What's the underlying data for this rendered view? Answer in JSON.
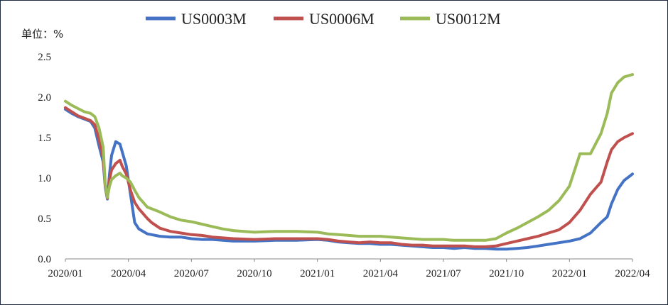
{
  "chart_data": {
    "type": "line",
    "unit_label": "单位：%",
    "x_tick_labels": [
      "2020/01",
      "2020/04",
      "2020/07",
      "2020/10",
      "2021/01",
      "2021/04",
      "2021/07",
      "2021/10",
      "2022/01",
      "2022/04"
    ],
    "y_tick_labels": [
      "0.0",
      "0.5",
      "1.0",
      "1.5",
      "2.0",
      "2.5"
    ],
    "ylim": [
      0,
      2.5
    ],
    "grid": false,
    "legend_position": "top",
    "x_unit": "months since 2020/01",
    "series": [
      {
        "name": "US0003M",
        "color": "#4472C4",
        "x": [
          0,
          0.3,
          0.6,
          0.9,
          1.2,
          1.4,
          1.6,
          1.8,
          1.9,
          2.0,
          2.1,
          2.2,
          2.4,
          2.6,
          2.7,
          2.9,
          3.1,
          3.3,
          3.5,
          3.7,
          3.9,
          4.1,
          4.5,
          5,
          5.5,
          6,
          6.5,
          7,
          7.5,
          8,
          9,
          10,
          11,
          12,
          12.5,
          13,
          13.5,
          14,
          14.5,
          15,
          15.5,
          16,
          16.5,
          17,
          17.5,
          18,
          18.5,
          19,
          19.5,
          20,
          20.5,
          21,
          21.5,
          22,
          22.5,
          23,
          23.5,
          24,
          24.5,
          25,
          25.5,
          25.8,
          26,
          26.3,
          26.6,
          27
        ],
        "y": [
          1.85,
          1.8,
          1.76,
          1.73,
          1.7,
          1.62,
          1.4,
          1.2,
          0.88,
          0.74,
          1.05,
          1.28,
          1.45,
          1.42,
          1.33,
          1.15,
          0.8,
          0.45,
          0.37,
          0.34,
          0.31,
          0.3,
          0.28,
          0.27,
          0.27,
          0.25,
          0.24,
          0.24,
          0.23,
          0.22,
          0.22,
          0.23,
          0.23,
          0.24,
          0.23,
          0.21,
          0.2,
          0.19,
          0.19,
          0.18,
          0.18,
          0.17,
          0.16,
          0.15,
          0.14,
          0.14,
          0.13,
          0.14,
          0.13,
          0.13,
          0.12,
          0.12,
          0.13,
          0.14,
          0.16,
          0.18,
          0.2,
          0.22,
          0.25,
          0.32,
          0.45,
          0.52,
          0.68,
          0.86,
          0.97,
          1.05
        ]
      },
      {
        "name": "US0006M",
        "color": "#C0504D",
        "x": [
          0,
          0.3,
          0.6,
          0.9,
          1.2,
          1.4,
          1.6,
          1.8,
          1.9,
          2.0,
          2.1,
          2.2,
          2.4,
          2.6,
          2.7,
          2.9,
          3.1,
          3.3,
          3.5,
          3.7,
          3.9,
          4.1,
          4.5,
          5,
          5.5,
          6,
          6.5,
          7,
          7.5,
          8,
          9,
          10,
          11,
          12,
          12.5,
          13,
          13.5,
          14,
          14.5,
          15,
          15.5,
          16,
          16.5,
          17,
          17.5,
          18,
          18.5,
          19,
          19.5,
          20,
          20.5,
          21,
          21.5,
          22,
          22.5,
          23,
          23.5,
          24,
          24.5,
          25,
          25.5,
          25.8,
          26,
          26.3,
          26.6,
          27
        ],
        "y": [
          1.87,
          1.82,
          1.77,
          1.74,
          1.71,
          1.66,
          1.48,
          1.25,
          0.9,
          0.75,
          0.98,
          1.1,
          1.18,
          1.22,
          1.15,
          1.05,
          0.85,
          0.7,
          0.62,
          0.56,
          0.5,
          0.45,
          0.38,
          0.34,
          0.32,
          0.3,
          0.29,
          0.27,
          0.26,
          0.25,
          0.24,
          0.25,
          0.25,
          0.25,
          0.24,
          0.22,
          0.21,
          0.2,
          0.21,
          0.2,
          0.2,
          0.18,
          0.17,
          0.17,
          0.16,
          0.16,
          0.16,
          0.16,
          0.15,
          0.15,
          0.16,
          0.19,
          0.22,
          0.25,
          0.28,
          0.32,
          0.36,
          0.45,
          0.6,
          0.8,
          0.95,
          1.2,
          1.35,
          1.45,
          1.5,
          1.55
        ]
      },
      {
        "name": "US0012M",
        "color": "#9BBB59",
        "x": [
          0,
          0.3,
          0.6,
          0.9,
          1.2,
          1.4,
          1.6,
          1.8,
          1.9,
          2.0,
          2.1,
          2.2,
          2.4,
          2.6,
          2.7,
          2.9,
          3.1,
          3.3,
          3.5,
          3.7,
          3.9,
          4.1,
          4.5,
          5,
          5.5,
          6,
          6.5,
          7,
          7.5,
          8,
          9,
          10,
          11,
          12,
          12.5,
          13,
          13.5,
          14,
          14.5,
          15,
          15.5,
          16,
          16.5,
          17,
          17.5,
          18,
          18.5,
          19,
          19.5,
          20,
          20.5,
          21,
          21.5,
          22,
          22.5,
          23,
          23.5,
          24,
          24.5,
          25,
          25.5,
          25.8,
          26,
          26.3,
          26.6,
          27
        ],
        "y": [
          1.95,
          1.9,
          1.86,
          1.82,
          1.8,
          1.76,
          1.62,
          1.38,
          0.92,
          0.76,
          0.9,
          0.98,
          1.03,
          1.06,
          1.03,
          1.0,
          0.95,
          0.85,
          0.76,
          0.7,
          0.64,
          0.62,
          0.58,
          0.52,
          0.48,
          0.46,
          0.43,
          0.4,
          0.37,
          0.35,
          0.33,
          0.34,
          0.34,
          0.33,
          0.31,
          0.3,
          0.29,
          0.28,
          0.28,
          0.28,
          0.27,
          0.26,
          0.25,
          0.24,
          0.24,
          0.24,
          0.23,
          0.23,
          0.23,
          0.23,
          0.25,
          0.32,
          0.38,
          0.45,
          0.52,
          0.6,
          0.72,
          0.9,
          1.3,
          1.3,
          1.55,
          1.8,
          2.05,
          2.18,
          2.25,
          2.28
        ]
      }
    ]
  }
}
